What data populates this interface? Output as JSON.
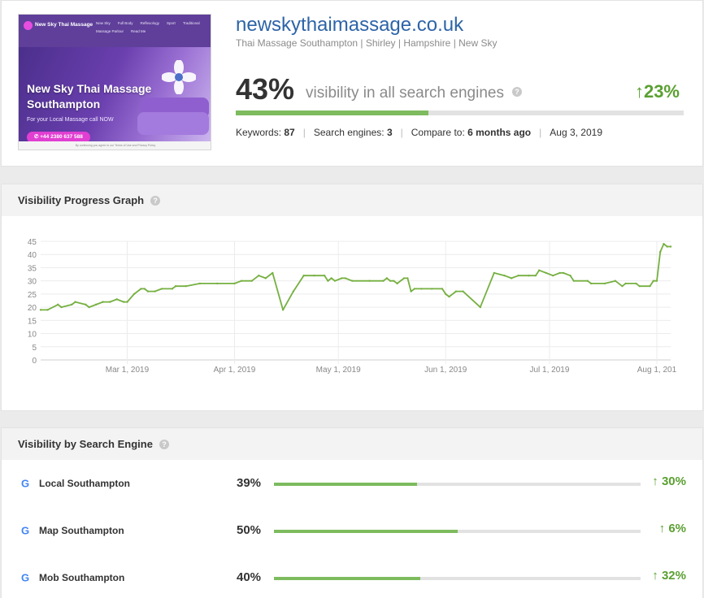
{
  "site": {
    "domain": "newskythaimassage.co.uk",
    "subtitle": "Thai Massage Southampton | Shirley | Hampshire | New Sky",
    "visibility_pct": "43%",
    "visibility_value": 43,
    "visibility_label": "visibility in all search engines",
    "change": "23%",
    "meta": {
      "keywords_label": "Keywords:",
      "keywords_value": "87",
      "engines_label": "Search engines:",
      "engines_value": "3",
      "compare_label": "Compare to:",
      "compare_value": "6 months ago",
      "date": "Aug 3, 2019"
    }
  },
  "thumbnail": {
    "brand": "New Sky Thai Massage",
    "menu": [
      "New Sky",
      "Full Body",
      "Reflexology",
      "Sport",
      "Traditional",
      "Massage Parlour",
      "Read Me"
    ],
    "headline": "New Sky Thai Massage Southampton",
    "tagline": "For your Local Massage call NOW",
    "phone": "+44 2380 637 588",
    "footer": "By continuing you agree to our Terms of Use and Privacy Policy"
  },
  "graph": {
    "title": "Visibility Progress Graph"
  },
  "engines": {
    "title": "Visibility by Search Engine",
    "rows": [
      {
        "name": "Local Southampton",
        "pct": "39%",
        "value": 39,
        "change": "30%"
      },
      {
        "name": "Map Southampton",
        "pct": "50%",
        "value": 50,
        "change": "6%"
      },
      {
        "name": "Mob Southampton",
        "pct": "40%",
        "value": 40,
        "change": "32%"
      }
    ]
  },
  "chart_data": {
    "type": "line",
    "ylim": [
      0,
      45
    ],
    "yticks": [
      0,
      5,
      10,
      15,
      20,
      25,
      30,
      35,
      40,
      45
    ],
    "xlim": [
      "2019-02-04",
      "2019-08-05"
    ],
    "xticks": [
      {
        "date": "2019-03-01",
        "label": "Mar 1, 2019"
      },
      {
        "date": "2019-04-01",
        "label": "Apr 1, 2019"
      },
      {
        "date": "2019-05-01",
        "label": "May 1, 2019"
      },
      {
        "date": "2019-06-01",
        "label": "Jun 1, 2019"
      },
      {
        "date": "2019-07-01",
        "label": "Jul 1, 2019"
      },
      {
        "date": "2019-08-01",
        "label": "Aug 1, 201"
      }
    ],
    "grid": true,
    "color": "#76b041",
    "series": [
      {
        "points": [
          [
            "2019-02-04",
            19
          ],
          [
            "2019-02-06",
            19
          ],
          [
            "2019-02-09",
            21
          ],
          [
            "2019-02-10",
            20
          ],
          [
            "2019-02-13",
            21
          ],
          [
            "2019-02-14",
            22
          ],
          [
            "2019-02-17",
            21
          ],
          [
            "2019-02-18",
            20
          ],
          [
            "2019-02-20",
            21
          ],
          [
            "2019-02-22",
            22
          ],
          [
            "2019-02-24",
            22
          ],
          [
            "2019-02-26",
            23
          ],
          [
            "2019-02-28",
            22
          ],
          [
            "2019-03-01",
            22
          ],
          [
            "2019-03-03",
            25
          ],
          [
            "2019-03-05",
            27
          ],
          [
            "2019-03-06",
            27
          ],
          [
            "2019-03-07",
            26
          ],
          [
            "2019-03-09",
            26
          ],
          [
            "2019-03-11",
            27
          ],
          [
            "2019-03-14",
            27
          ],
          [
            "2019-03-15",
            28
          ],
          [
            "2019-03-18",
            28
          ],
          [
            "2019-03-22",
            29
          ],
          [
            "2019-03-27",
            29
          ],
          [
            "2019-04-01",
            29
          ],
          [
            "2019-04-03",
            30
          ],
          [
            "2019-04-06",
            30
          ],
          [
            "2019-04-08",
            32
          ],
          [
            "2019-04-10",
            31
          ],
          [
            "2019-04-12",
            33
          ],
          [
            "2019-04-15",
            19
          ],
          [
            "2019-04-18",
            26
          ],
          [
            "2019-04-21",
            32
          ],
          [
            "2019-04-24",
            32
          ],
          [
            "2019-04-27",
            32
          ],
          [
            "2019-04-28",
            30
          ],
          [
            "2019-04-29",
            31
          ],
          [
            "2019-04-30",
            30
          ],
          [
            "2019-05-02",
            31
          ],
          [
            "2019-05-03",
            31
          ],
          [
            "2019-05-05",
            30
          ],
          [
            "2019-05-10",
            30
          ],
          [
            "2019-05-14",
            30
          ],
          [
            "2019-05-15",
            31
          ],
          [
            "2019-05-16",
            30
          ],
          [
            "2019-05-17",
            30
          ],
          [
            "2019-05-18",
            29
          ],
          [
            "2019-05-20",
            31
          ],
          [
            "2019-05-21",
            31
          ],
          [
            "2019-05-22",
            26
          ],
          [
            "2019-05-23",
            27
          ],
          [
            "2019-05-25",
            27
          ],
          [
            "2019-05-28",
            27
          ],
          [
            "2019-05-31",
            27
          ],
          [
            "2019-06-01",
            25
          ],
          [
            "2019-06-02",
            24
          ],
          [
            "2019-06-04",
            26
          ],
          [
            "2019-06-06",
            26
          ],
          [
            "2019-06-11",
            20
          ],
          [
            "2019-06-15",
            33
          ],
          [
            "2019-06-18",
            32
          ],
          [
            "2019-06-20",
            31
          ],
          [
            "2019-06-22",
            32
          ],
          [
            "2019-06-25",
            32
          ],
          [
            "2019-06-27",
            32
          ],
          [
            "2019-06-28",
            34
          ],
          [
            "2019-06-30",
            33
          ],
          [
            "2019-07-02",
            32
          ],
          [
            "2019-07-04",
            33
          ],
          [
            "2019-07-05",
            33
          ],
          [
            "2019-07-07",
            32
          ],
          [
            "2019-07-08",
            30
          ],
          [
            "2019-07-12",
            30
          ],
          [
            "2019-07-13",
            29
          ],
          [
            "2019-07-17",
            29
          ],
          [
            "2019-07-20",
            30
          ],
          [
            "2019-07-22",
            28
          ],
          [
            "2019-07-23",
            29
          ],
          [
            "2019-07-26",
            29
          ],
          [
            "2019-07-27",
            28
          ],
          [
            "2019-07-30",
            28
          ],
          [
            "2019-07-31",
            30
          ],
          [
            "2019-08-01",
            30
          ],
          [
            "2019-08-02",
            41
          ],
          [
            "2019-08-03",
            44
          ],
          [
            "2019-08-04",
            43
          ],
          [
            "2019-08-05",
            43
          ]
        ]
      }
    ]
  }
}
